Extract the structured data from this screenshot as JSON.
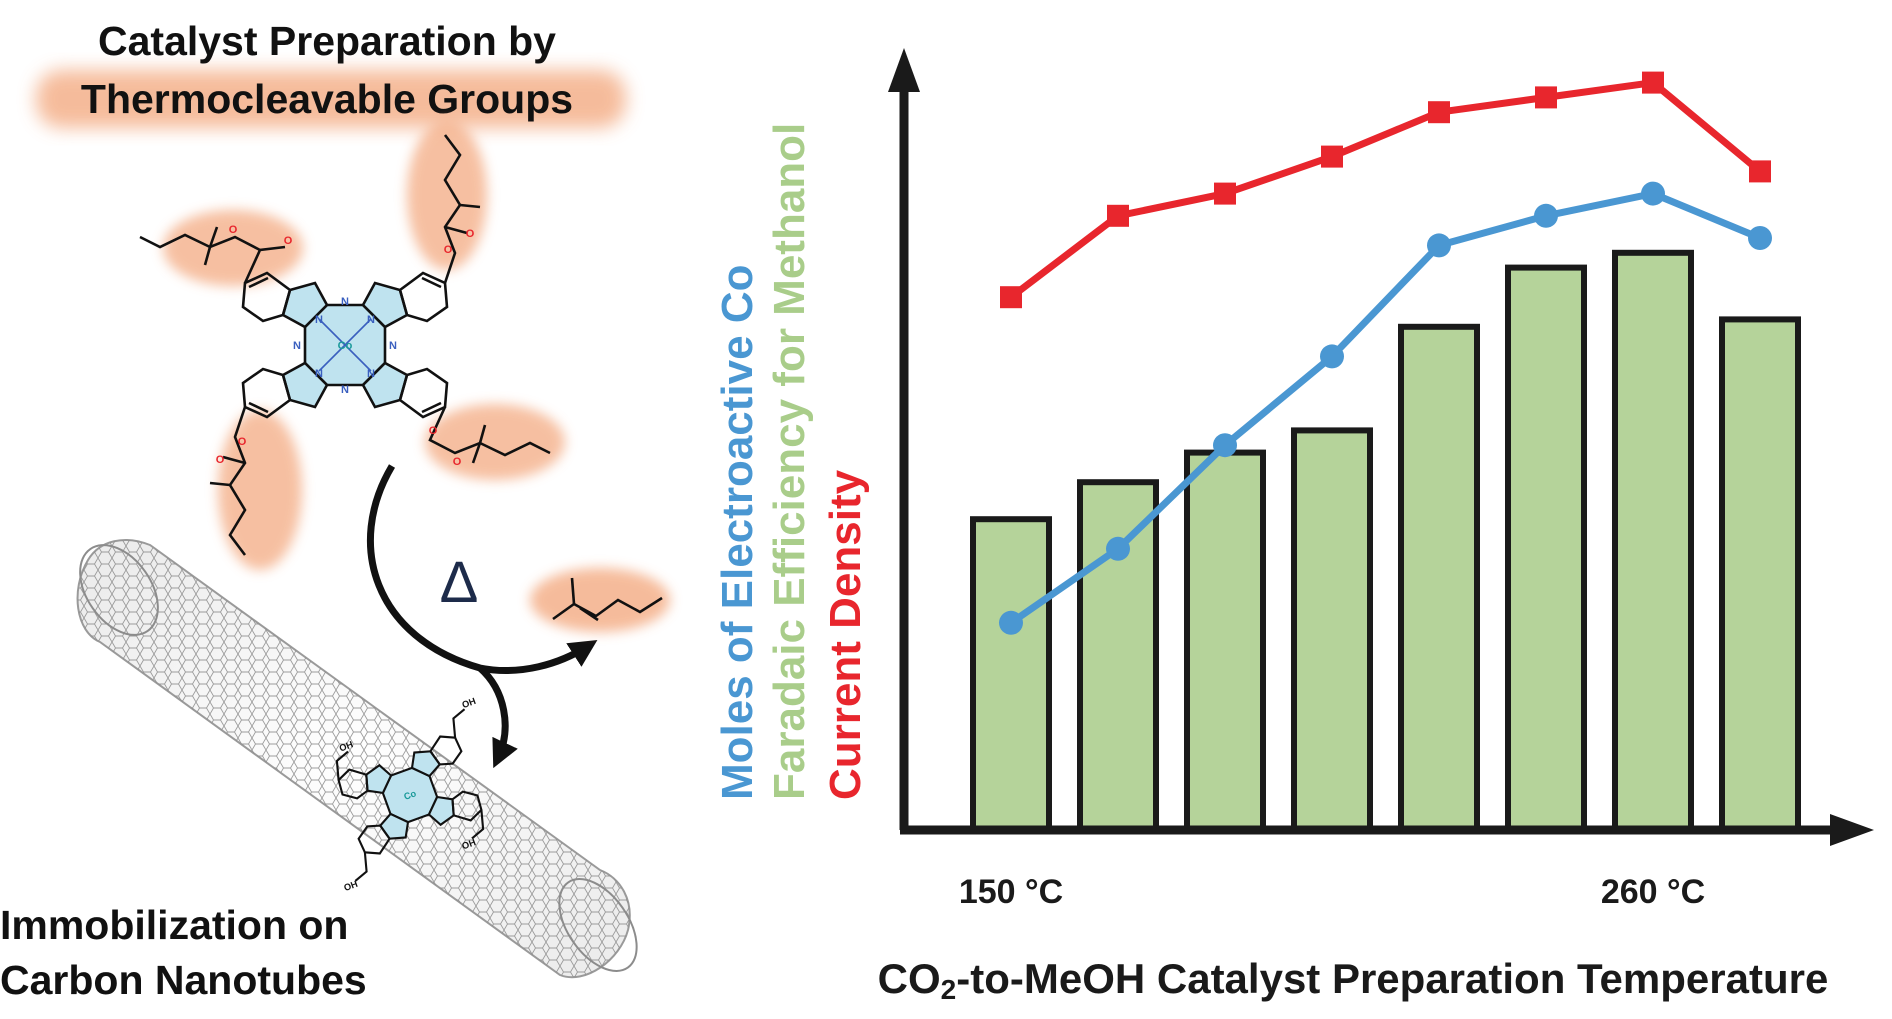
{
  "left_panel": {
    "title_line1": "Catalyst Preparation by",
    "title_line2": "Thermocleavable Groups",
    "heat_symbol": "Δ",
    "bottom_line1": "Immobilization on",
    "bottom_line2": "Carbon Nanotubes",
    "atom_labels": {
      "cobalt": "Co",
      "nitrogen": "N",
      "oxygen": "O",
      "hydroxyl": "OH"
    }
  },
  "chart_data": {
    "type": "bar+line",
    "title": "",
    "xlabel": "CO₂-to-MeOH Catalyst Preparation Temperature",
    "xlabel_parts": {
      "before": "CO",
      "subscript": "2",
      "after": "-to-MeOH Catalyst Preparation Temperature"
    },
    "ylabels": [
      {
        "text": "Moles of Electroactive Co",
        "color": "#4a97d2"
      },
      {
        "text": "Faradaic Efficiency for Methanol",
        "color": "#a9cd8a"
      },
      {
        "text": "Current Density",
        "color": "#e8262d"
      }
    ],
    "x_tick_labels": [
      {
        "index": 0,
        "text": "150 °C"
      },
      {
        "index": 6,
        "text": "260 °C"
      }
    ],
    "categories_count": 8,
    "ylim": [
      0,
      100
    ],
    "series": [
      {
        "name": "Faradaic Efficiency for Methanol",
        "kind": "bar",
        "color": "#b5d39a",
        "values": [
          42,
          47,
          51,
          54,
          68,
          76,
          78,
          69
        ]
      },
      {
        "name": "Moles of Electroactive Co",
        "kind": "line",
        "marker": "circle",
        "color": "#4a97d2",
        "values": [
          28,
          38,
          52,
          64,
          79,
          83,
          86,
          80
        ]
      },
      {
        "name": "Current Density",
        "kind": "line",
        "marker": "square",
        "color": "#e8262d",
        "values": [
          72,
          83,
          86,
          91,
          97,
          99,
          101,
          89
        ]
      }
    ],
    "grid": false,
    "legend": "none"
  },
  "colors": {
    "axis": "#1a1a1a",
    "highlight_glow": "#f4b08a",
    "bond_black": "#111111",
    "oxygen": "#e8262d",
    "nitrogen": "#3a5fbf",
    "cobalt": "#1a9a9a",
    "ring_fill": "#bfe3ef",
    "nanotube": "#9a9a9a"
  }
}
